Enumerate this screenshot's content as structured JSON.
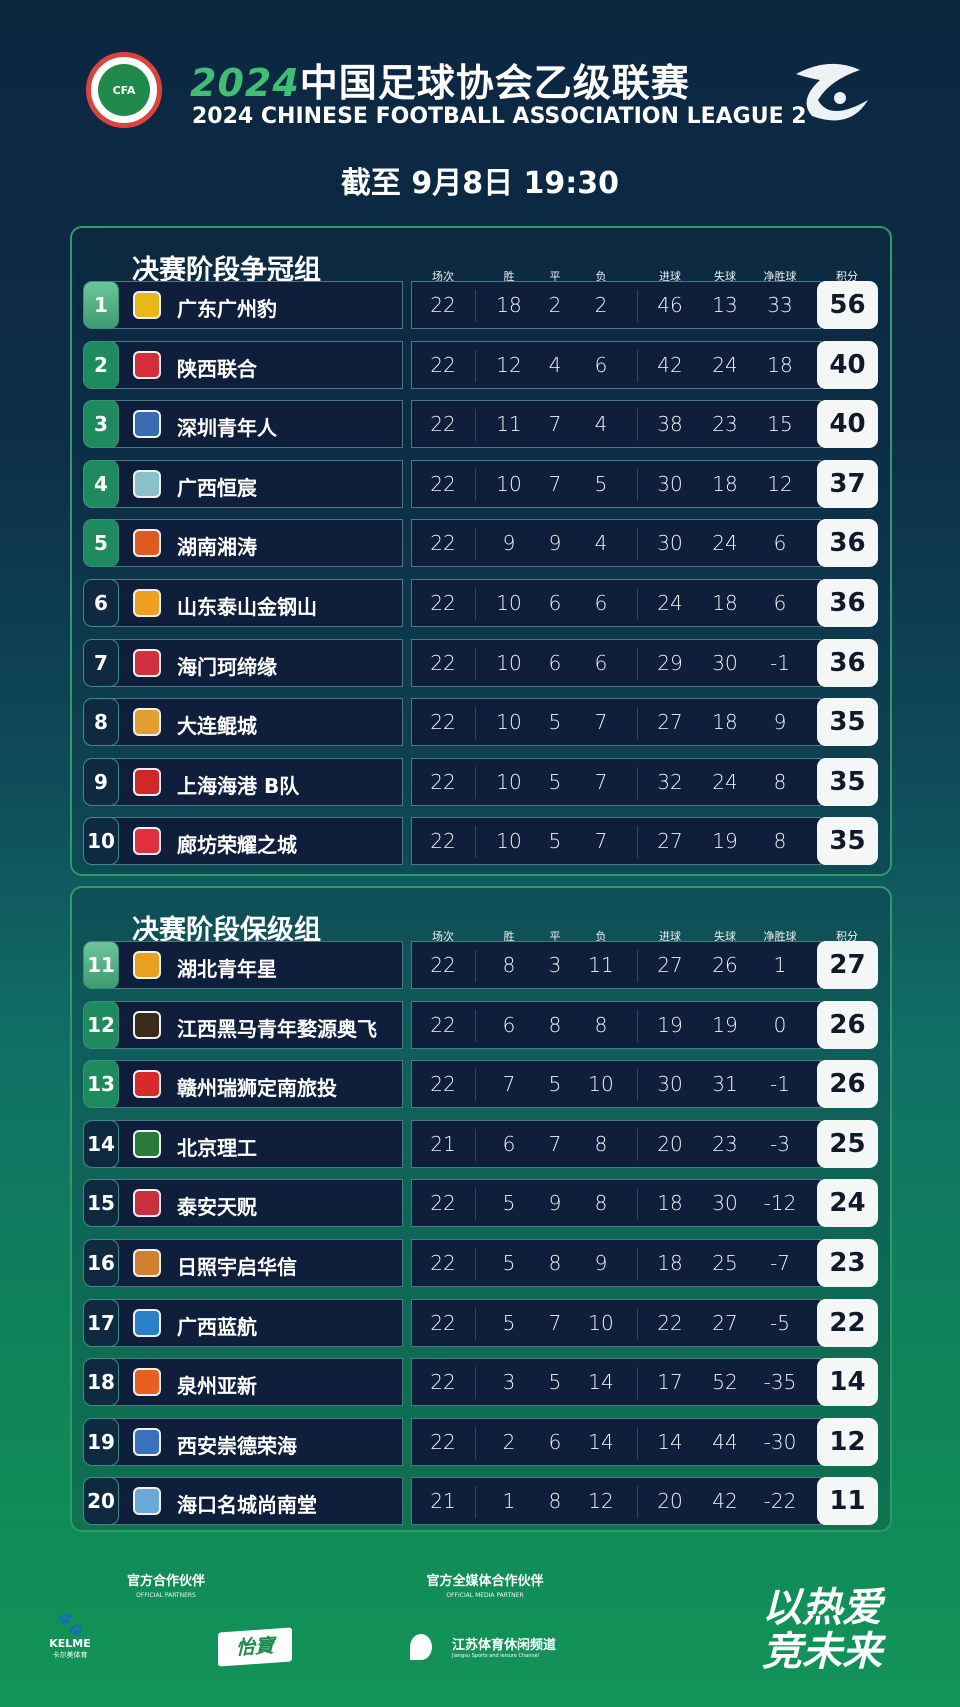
{
  "header": {
    "cfa_logo_text": "CFA",
    "title_year": "2024",
    "title_cn": "中国足球协会乙级联赛",
    "title_en": "2024 CHINESE FOOTBALL ASSOCIATION LEAGUE 2",
    "as_of": "截至 9月8日 19:30"
  },
  "columns": [
    "场次",
    "胜",
    "平",
    "负",
    "进球",
    "失球",
    "净胜球",
    "积分"
  ],
  "groups": [
    {
      "title": "决赛阶段争冠组",
      "rows": [
        {
          "rank": "1",
          "team": "广东广州豹",
          "logo_color": "#e8b818",
          "p": "22",
          "w": "18",
          "d": "2",
          "l": "2",
          "gf": "46",
          "ga": "13",
          "gd": "33",
          "pts": "56"
        },
        {
          "rank": "2",
          "team": "陕西联合",
          "logo_color": "#d62d3a",
          "p": "22",
          "w": "12",
          "d": "4",
          "l": "6",
          "gf": "42",
          "ga": "24",
          "gd": "18",
          "pts": "40"
        },
        {
          "rank": "3",
          "team": "深圳青年人",
          "logo_color": "#3a6ab0",
          "p": "22",
          "w": "11",
          "d": "7",
          "l": "4",
          "gf": "38",
          "ga": "23",
          "gd": "15",
          "pts": "40"
        },
        {
          "rank": "4",
          "team": "广西恒宸",
          "logo_color": "#8cc0c8",
          "p": "22",
          "w": "10",
          "d": "7",
          "l": "5",
          "gf": "30",
          "ga": "18",
          "gd": "12",
          "pts": "37"
        },
        {
          "rank": "5",
          "team": "湖南湘涛",
          "logo_color": "#e05a20",
          "p": "22",
          "w": "9",
          "d": "9",
          "l": "4",
          "gf": "30",
          "ga": "24",
          "gd": "6",
          "pts": "36"
        },
        {
          "rank": "6",
          "team": "山东泰山金钢山",
          "logo_color": "#f0a020",
          "p": "22",
          "w": "10",
          "d": "6",
          "l": "6",
          "gf": "24",
          "ga": "18",
          "gd": "6",
          "pts": "36"
        },
        {
          "rank": "7",
          "team": "海门珂缔缘",
          "logo_color": "#d03040",
          "p": "22",
          "w": "10",
          "d": "6",
          "l": "6",
          "gf": "29",
          "ga": "30",
          "gd": "-1",
          "pts": "36"
        },
        {
          "rank": "8",
          "team": "大连鲲城",
          "logo_color": "#e0a030",
          "p": "22",
          "w": "10",
          "d": "5",
          "l": "7",
          "gf": "27",
          "ga": "18",
          "gd": "9",
          "pts": "35"
        },
        {
          "rank": "9",
          "team": "上海海港 B队",
          "logo_color": "#d02828",
          "p": "22",
          "w": "10",
          "d": "5",
          "l": "7",
          "gf": "32",
          "ga": "24",
          "gd": "8",
          "pts": "35"
        },
        {
          "rank": "10",
          "team": "廊坊荣耀之城",
          "logo_color": "#e03040",
          "p": "22",
          "w": "10",
          "d": "5",
          "l": "7",
          "gf": "27",
          "ga": "19",
          "gd": "8",
          "pts": "35"
        }
      ]
    },
    {
      "title": "决赛阶段保级组",
      "rows": [
        {
          "rank": "11",
          "team": "湖北青年星",
          "logo_color": "#e8a020",
          "p": "22",
          "w": "8",
          "d": "3",
          "l": "11",
          "gf": "27",
          "ga": "26",
          "gd": "1",
          "pts": "27"
        },
        {
          "rank": "12",
          "team": "江西黑马青年婺源奥飞",
          "logo_color": "#3a2a1a",
          "p": "22",
          "w": "6",
          "d": "8",
          "l": "8",
          "gf": "19",
          "ga": "19",
          "gd": "0",
          "pts": "26"
        },
        {
          "rank": "13",
          "team": "赣州瑞狮定南旅投",
          "logo_color": "#d82a2a",
          "p": "22",
          "w": "7",
          "d": "5",
          "l": "10",
          "gf": "30",
          "ga": "31",
          "gd": "-1",
          "pts": "26"
        },
        {
          "rank": "14",
          "team": "北京理工",
          "logo_color": "#2a7a3a",
          "p": "21",
          "w": "6",
          "d": "7",
          "l": "8",
          "gf": "20",
          "ga": "23",
          "gd": "-3",
          "pts": "25"
        },
        {
          "rank": "15",
          "team": "泰安天贶",
          "logo_color": "#c83040",
          "p": "22",
          "w": "5",
          "d": "9",
          "l": "8",
          "gf": "18",
          "ga": "30",
          "gd": "-12",
          "pts": "24"
        },
        {
          "rank": "16",
          "team": "日照宇启华信",
          "logo_color": "#d08030",
          "p": "22",
          "w": "5",
          "d": "8",
          "l": "9",
          "gf": "18",
          "ga": "25",
          "gd": "-7",
          "pts": "23"
        },
        {
          "rank": "17",
          "team": "广西蓝航",
          "logo_color": "#2a80c8",
          "p": "22",
          "w": "5",
          "d": "7",
          "l": "10",
          "gf": "22",
          "ga": "27",
          "gd": "-5",
          "pts": "22"
        },
        {
          "rank": "18",
          "team": "泉州亚新",
          "logo_color": "#e86020",
          "p": "22",
          "w": "3",
          "d": "5",
          "l": "14",
          "gf": "17",
          "ga": "52",
          "gd": "-35",
          "pts": "14"
        },
        {
          "rank": "19",
          "team": "西安崇德荣海",
          "logo_color": "#3a70c0",
          "p": "22",
          "w": "2",
          "d": "6",
          "l": "14",
          "gf": "14",
          "ga": "44",
          "gd": "-30",
          "pts": "12"
        },
        {
          "rank": "20",
          "team": "海口名城尚南堂",
          "logo_color": "#6aa8d8",
          "p": "21",
          "w": "1",
          "d": "8",
          "l": "12",
          "gf": "20",
          "ga": "42",
          "gd": "-22",
          "pts": "11"
        }
      ]
    }
  ],
  "footer": {
    "partners_label": "官方合作伙伴",
    "partners_sub": "OFFICIAL PARTNERS",
    "media_label": "官方全媒体合作伙伴",
    "media_sub": "OFFICIAL MEDIA PARTNER",
    "kelme": "KELME",
    "kelme_cn": "卡尔美体育",
    "yibao": "怡寶",
    "jiangsu": "江苏体育休闲频道",
    "jiangsu_sub": "Jiangsu Sports and leisure Channel",
    "slogan_1": "以热爱",
    "slogan_2": "竞未来"
  },
  "colors": {
    "rank_top": "#5cb888",
    "rank_green": "#1f8a5e",
    "rank_dark": "#0f2a40",
    "points_bg": "#f4f7f5",
    "panel_border": "#2f9a6a"
  }
}
